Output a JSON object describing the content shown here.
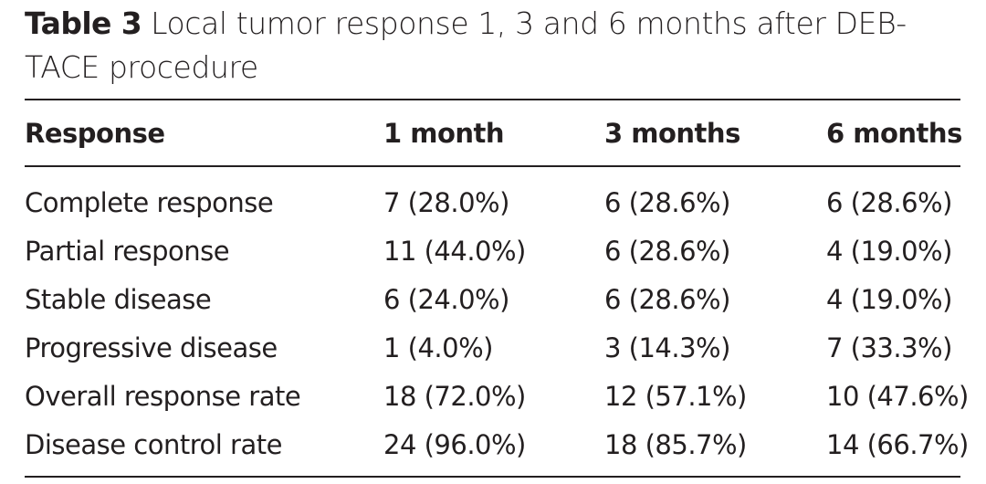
{
  "caption": {
    "label": "Table 3",
    "title": "Local tumor response 1, 3 and 6 months after DEB-TACE procedure"
  },
  "table": {
    "headers": [
      "Response",
      "1 month",
      "3 months",
      "6 months"
    ],
    "rows": [
      [
        "Complete response",
        "7 (28.0%)",
        "6 (28.6%)",
        "6 (28.6%)"
      ],
      [
        "Partial response",
        "11 (44.0%)",
        "6 (28.6%)",
        "4 (19.0%)"
      ],
      [
        "Stable disease",
        "6 (24.0%)",
        "6 (28.6%)",
        "4 (19.0%)"
      ],
      [
        "Progressive disease",
        "1 (4.0%)",
        "3 (14.3%)",
        "7 (33.3%)"
      ],
      [
        "Overall response rate",
        "18 (72.0%)",
        "12 (57.1%)",
        "10 (47.6%)"
      ],
      [
        "Disease control rate",
        "24 (96.0%)",
        "18 (85.7%)",
        "14 (66.7%)"
      ]
    ]
  }
}
